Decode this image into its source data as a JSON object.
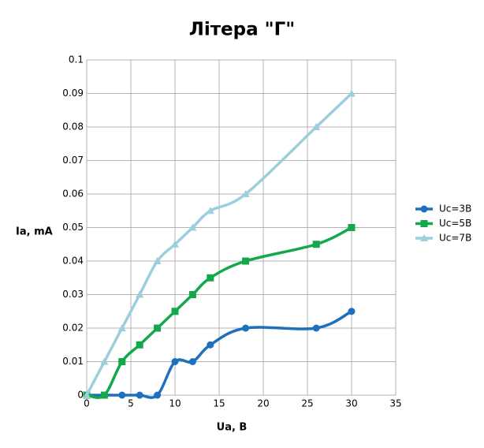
{
  "chart_data": {
    "type": "line",
    "title": "Літера \"Г\"",
    "x_label": "Ua, B",
    "y_label": "Ia, mA",
    "x": [
      0,
      2,
      4,
      6,
      8,
      10,
      12,
      14,
      18,
      26,
      30
    ],
    "series": [
      {
        "name": "Uc=3B",
        "color": "#1f6fbf",
        "marker": "circle",
        "values": [
          0,
          0,
          0,
          0,
          0,
          0.01,
          0.01,
          0.015,
          0.02,
          0.02,
          0.025
        ]
      },
      {
        "name": "Uc=5B",
        "color": "#13a84a",
        "marker": "square",
        "values": [
          0,
          0,
          0.01,
          0.015,
          0.02,
          0.025,
          0.03,
          0.035,
          0.04,
          0.045,
          0.05
        ]
      },
      {
        "name": "Uc=7B",
        "color": "#9ccfdc",
        "marker": "triangle",
        "values": [
          0,
          0.01,
          0.02,
          0.03,
          0.04,
          0.045,
          0.05,
          0.055,
          0.06,
          0.08,
          0.09
        ]
      }
    ],
    "xlim": [
      0,
      35
    ],
    "xticks": [
      0,
      5,
      10,
      15,
      20,
      25,
      30,
      35
    ],
    "ylim": [
      0,
      0.1
    ],
    "yticks": [
      0,
      0.01,
      0.02,
      0.03,
      0.04,
      0.05,
      0.06,
      0.07,
      0.08,
      0.09,
      0.1
    ],
    "grid": true,
    "legend": "right",
    "smooth": true
  }
}
